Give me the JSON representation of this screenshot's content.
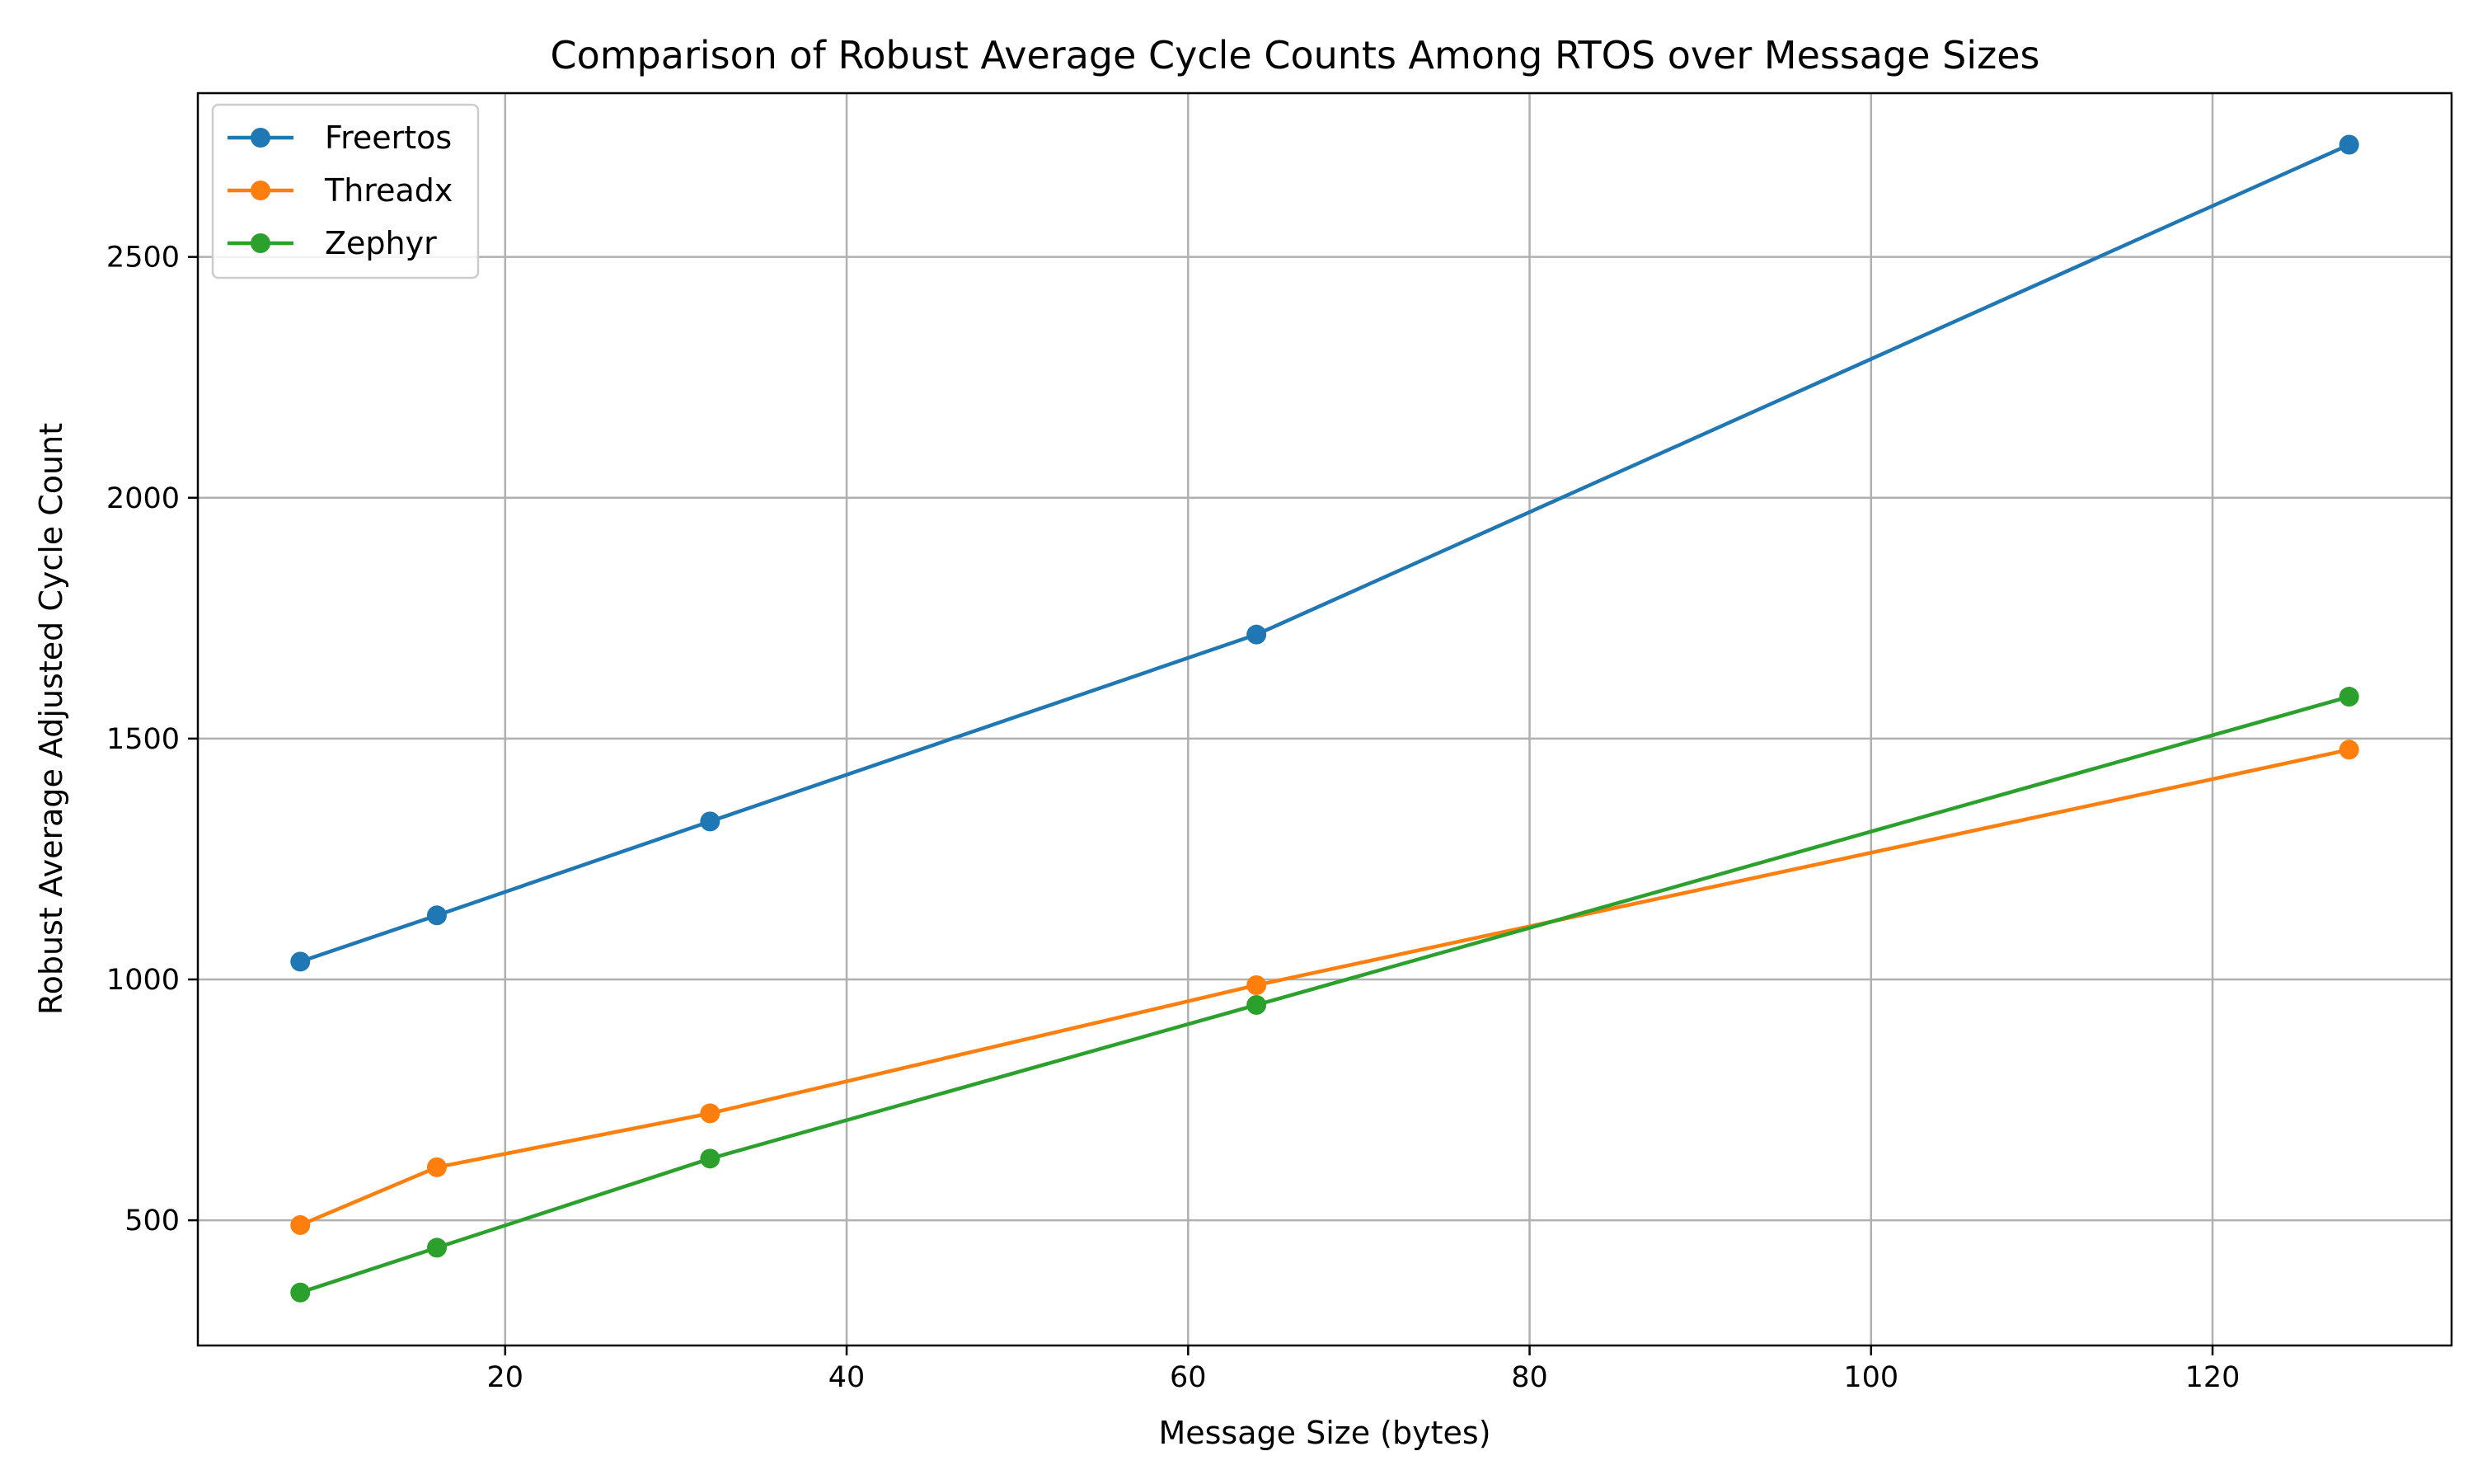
{
  "chart_data": {
    "type": "line",
    "title": "Comparison of Robust Average Cycle Counts Among RTOS over Message Sizes",
    "xlabel": "Message Size (bytes)",
    "ylabel": "Robust Average Adjusted Cycle Count",
    "x": [
      8,
      16,
      32,
      64,
      128
    ],
    "xlim": [
      2,
      134
    ],
    "ylim": [
      240,
      2840
    ],
    "xticks": [
      20,
      40,
      60,
      80,
      100,
      120
    ],
    "yticks": [
      500,
      1000,
      1500,
      2000,
      2500
    ],
    "grid": true,
    "legend_position": "top-left",
    "series": [
      {
        "name": "Freertos",
        "color": "#1f77b4",
        "values": [
          1037,
          1133,
          1328,
          1716,
          2733
        ]
      },
      {
        "name": "Threadx",
        "color": "#ff7f0e",
        "values": [
          490,
          610,
          722,
          988,
          1477
        ]
      },
      {
        "name": "Zephyr",
        "color": "#2ca02c",
        "values": [
          350,
          443,
          628,
          947,
          1587
        ]
      }
    ]
  }
}
